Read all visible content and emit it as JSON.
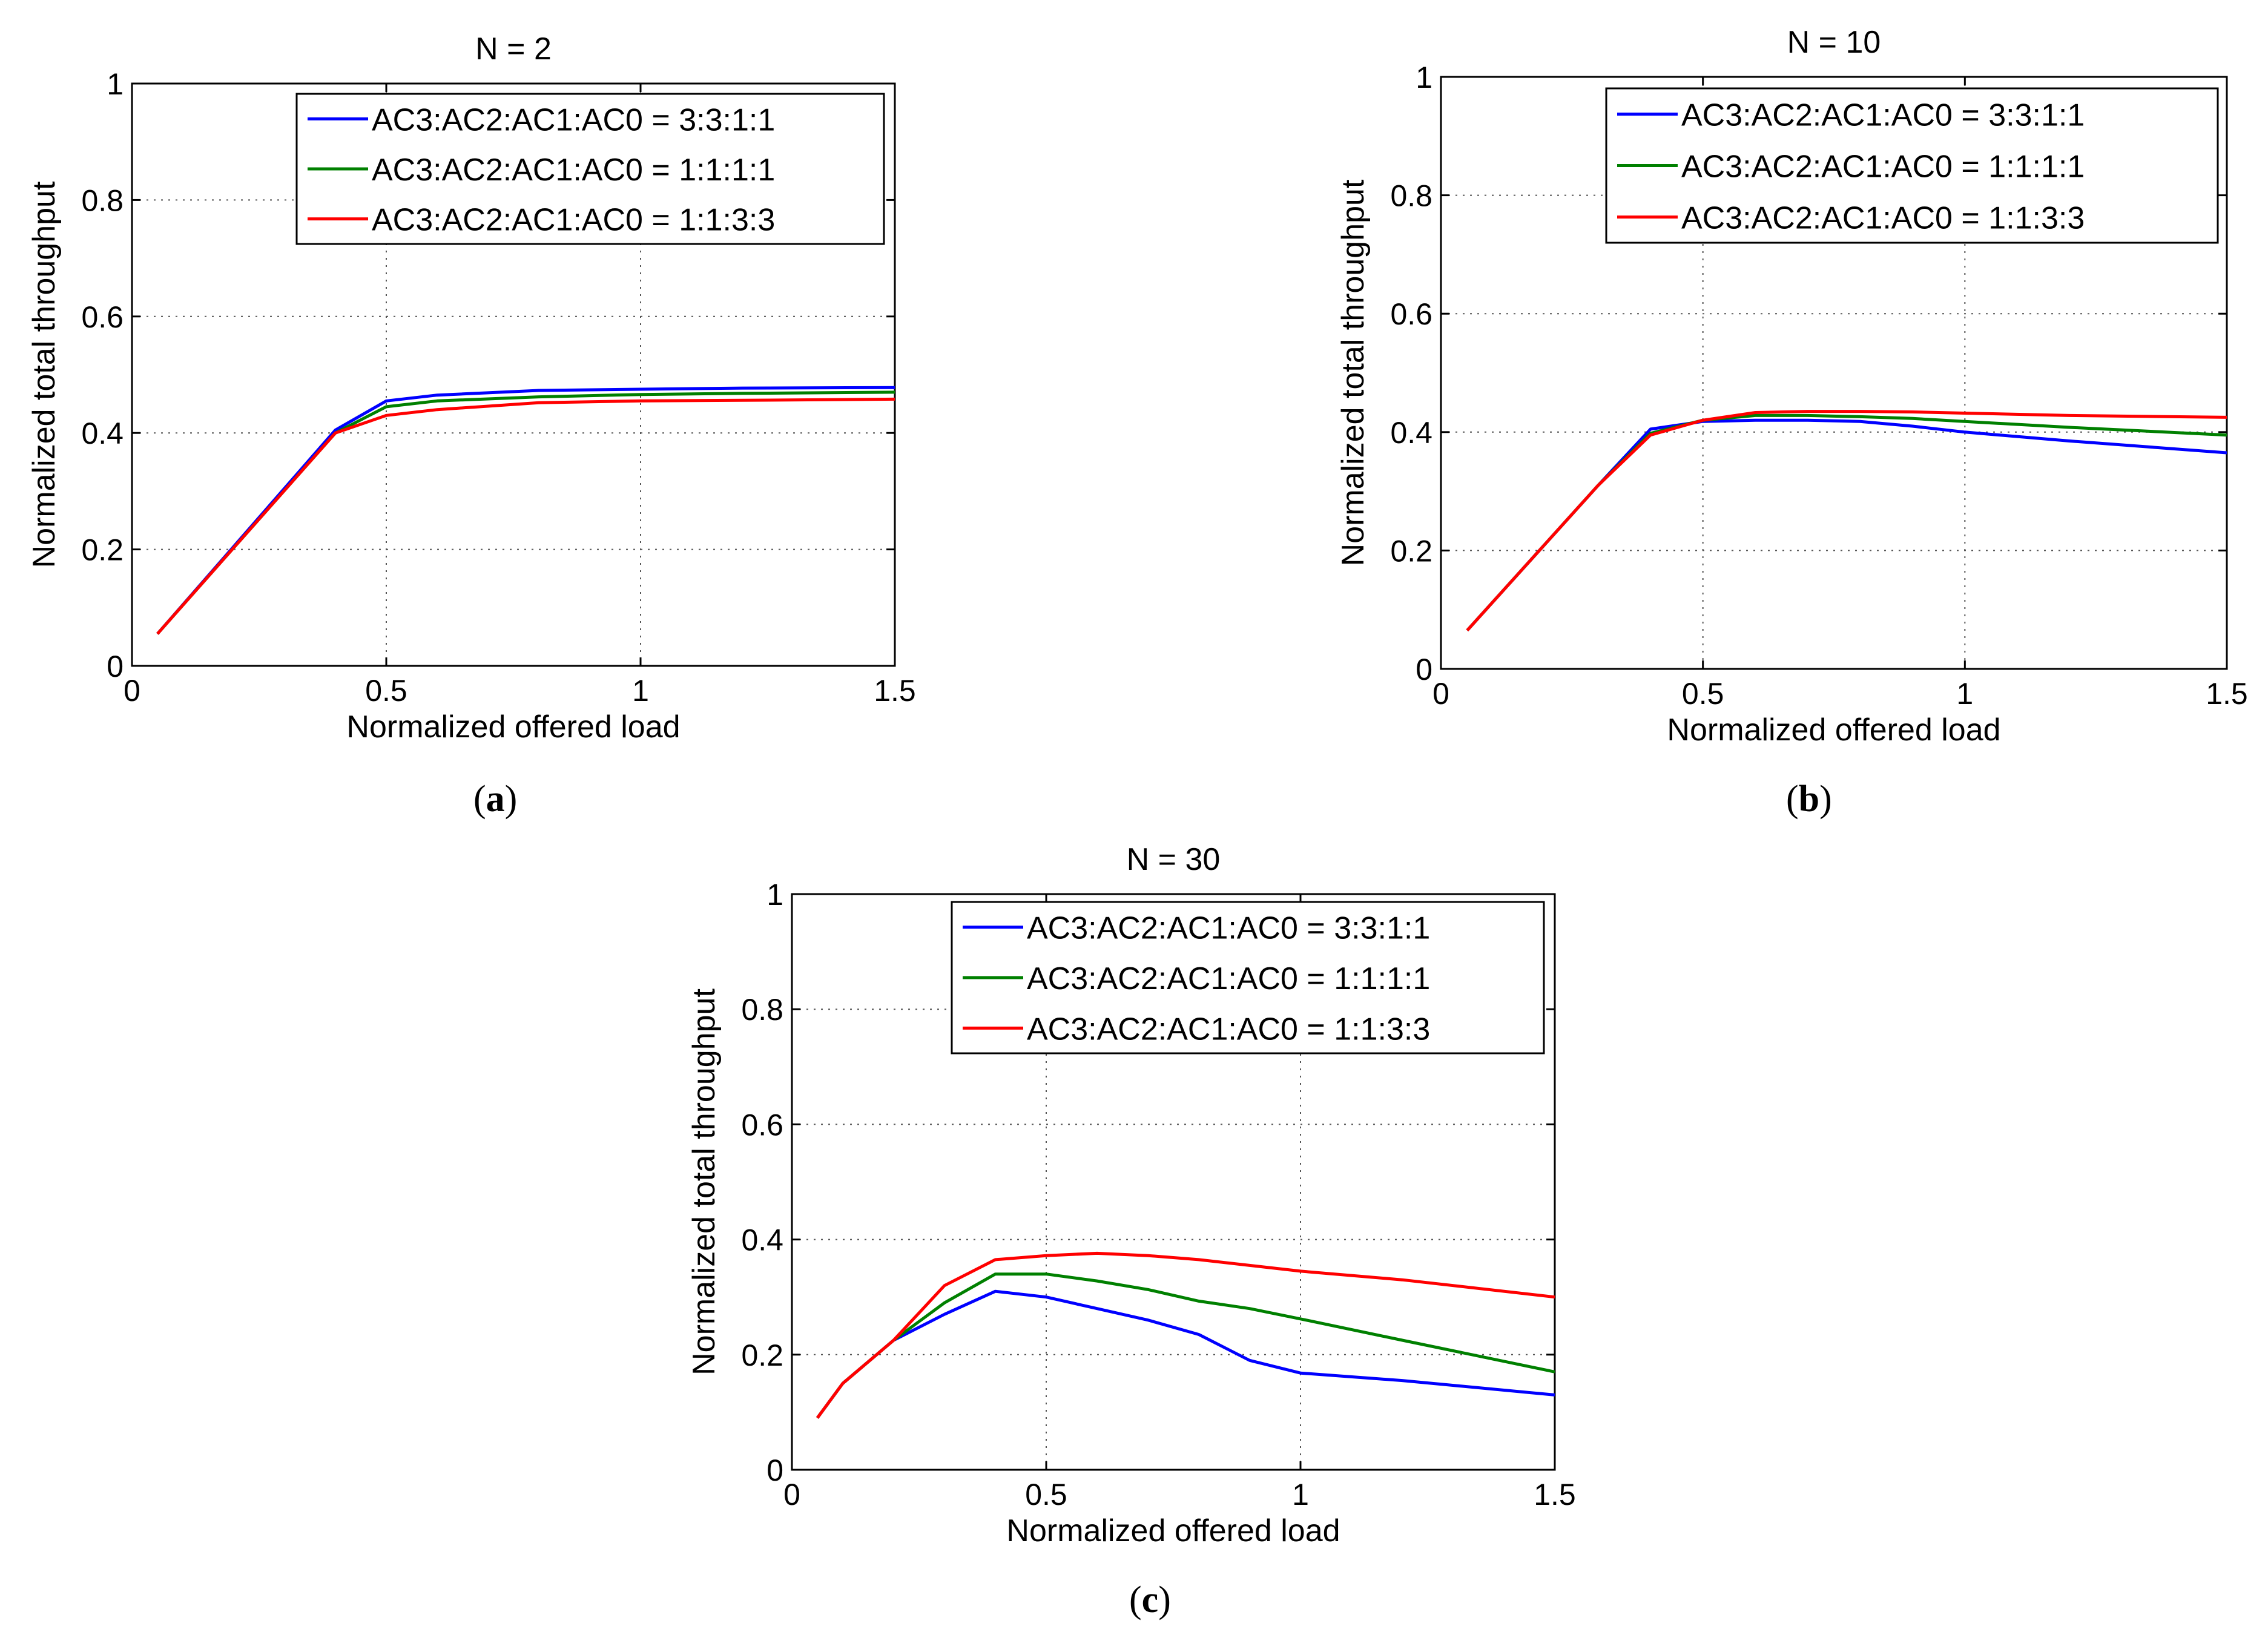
{
  "chart_data": [
    {
      "type": "line",
      "panel_label": "a",
      "title": "N = 2",
      "xlabel": "Normalized offered load",
      "ylabel": "Normalized total throughput",
      "xlim": [
        0,
        1.5
      ],
      "ylim": [
        0,
        1
      ],
      "xticks": [
        0,
        0.5,
        1,
        1.5
      ],
      "xtick_labels": [
        "0",
        "0.5",
        "1",
        "1.5"
      ],
      "yticks": [
        0,
        0.2,
        0.4,
        0.6,
        0.8,
        1
      ],
      "ytick_labels": [
        "0",
        "0.2",
        "0.4",
        "0.6",
        "0.8",
        "1"
      ],
      "grid": true,
      "legend_position": "top-right",
      "series": [
        {
          "name": "AC3:AC2:AC1:AC0 = 3:3:1:1",
          "color": "#0000ff",
          "x": [
            0.05,
            0.4,
            0.5,
            0.6,
            0.8,
            1.0,
            1.2,
            1.5
          ],
          "y": [
            0.055,
            0.405,
            0.455,
            0.465,
            0.473,
            0.475,
            0.477,
            0.478
          ]
        },
        {
          "name": "AC3:AC2:AC1:AC0 = 1:1:1:1",
          "color": "#008000",
          "x": [
            0.05,
            0.4,
            0.5,
            0.6,
            0.8,
            1.0,
            1.2,
            1.5
          ],
          "y": [
            0.055,
            0.4,
            0.445,
            0.455,
            0.462,
            0.466,
            0.468,
            0.47
          ]
        },
        {
          "name": "AC3:AC2:AC1:AC0 = 1:1:3:3",
          "color": "#ff0000",
          "x": [
            0.05,
            0.4,
            0.5,
            0.6,
            0.8,
            1.0,
            1.2,
            1.5
          ],
          "y": [
            0.055,
            0.4,
            0.43,
            0.44,
            0.452,
            0.455,
            0.456,
            0.458
          ]
        }
      ]
    },
    {
      "type": "line",
      "panel_label": "b",
      "title": "N = 10",
      "xlabel": "Normalized offered load",
      "ylabel": "Normalized total throughput",
      "xlim": [
        0,
        1.5
      ],
      "ylim": [
        0,
        1
      ],
      "xticks": [
        0,
        0.5,
        1,
        1.5
      ],
      "xtick_labels": [
        "0",
        "0.5",
        "1",
        "1.5"
      ],
      "yticks": [
        0,
        0.2,
        0.4,
        0.6,
        0.8,
        1
      ],
      "ytick_labels": [
        "0",
        "0.2",
        "0.4",
        "0.6",
        "0.8",
        "1"
      ],
      "grid": true,
      "legend_position": "top-right",
      "series": [
        {
          "name": "AC3:AC2:AC1:AC0 = 3:3:1:1",
          "color": "#0000ff",
          "x": [
            0.05,
            0.3,
            0.4,
            0.5,
            0.6,
            0.7,
            0.8,
            0.9,
            1.0,
            1.2,
            1.5
          ],
          "y": [
            0.065,
            0.31,
            0.405,
            0.418,
            0.42,
            0.42,
            0.418,
            0.41,
            0.4,
            0.385,
            0.365
          ]
        },
        {
          "name": "AC3:AC2:AC1:AC0 = 1:1:1:1",
          "color": "#008000",
          "x": [
            0.05,
            0.3,
            0.4,
            0.5,
            0.6,
            0.7,
            0.8,
            0.9,
            1.0,
            1.2,
            1.5
          ],
          "y": [
            0.065,
            0.31,
            0.398,
            0.42,
            0.428,
            0.428,
            0.426,
            0.423,
            0.418,
            0.408,
            0.395
          ]
        },
        {
          "name": "AC3:AC2:AC1:AC0 = 1:1:3:3",
          "color": "#ff0000",
          "x": [
            0.05,
            0.3,
            0.4,
            0.5,
            0.6,
            0.7,
            0.8,
            0.9,
            1.0,
            1.2,
            1.5
          ],
          "y": [
            0.065,
            0.31,
            0.395,
            0.42,
            0.433,
            0.435,
            0.435,
            0.434,
            0.432,
            0.428,
            0.425
          ]
        }
      ]
    },
    {
      "type": "line",
      "panel_label": "c",
      "title": "N = 30",
      "xlabel": "Normalized offered load",
      "ylabel": "Normalized total throughput",
      "xlim": [
        0,
        1.5
      ],
      "ylim": [
        0,
        1
      ],
      "xticks": [
        0,
        0.5,
        1,
        1.5
      ],
      "xtick_labels": [
        "0",
        "0.5",
        "1",
        "1.5"
      ],
      "yticks": [
        0,
        0.2,
        0.4,
        0.6,
        0.8,
        1
      ],
      "ytick_labels": [
        "0",
        "0.2",
        "0.4",
        "0.6",
        "0.8",
        "1"
      ],
      "grid": true,
      "legend_position": "top-right",
      "series": [
        {
          "name": "AC3:AC2:AC1:AC0 = 3:3:1:1",
          "color": "#0000ff",
          "x": [
            0.05,
            0.1,
            0.2,
            0.3,
            0.4,
            0.5,
            0.6,
            0.7,
            0.8,
            0.9,
            1.0,
            1.2,
            1.5
          ],
          "y": [
            0.09,
            0.15,
            0.225,
            0.27,
            0.31,
            0.3,
            0.28,
            0.26,
            0.235,
            0.19,
            0.168,
            0.155,
            0.13
          ]
        },
        {
          "name": "AC3:AC2:AC1:AC0 = 1:1:1:1",
          "color": "#008000",
          "x": [
            0.05,
            0.1,
            0.2,
            0.3,
            0.4,
            0.5,
            0.6,
            0.7,
            0.8,
            0.9,
            1.0,
            1.2,
            1.5
          ],
          "y": [
            0.09,
            0.15,
            0.225,
            0.29,
            0.34,
            0.34,
            0.328,
            0.313,
            0.293,
            0.28,
            0.262,
            0.225,
            0.17
          ]
        },
        {
          "name": "AC3:AC2:AC1:AC0 = 1:1:3:3",
          "color": "#ff0000",
          "x": [
            0.05,
            0.1,
            0.2,
            0.3,
            0.4,
            0.5,
            0.6,
            0.7,
            0.8,
            0.9,
            1.0,
            1.2,
            1.5
          ],
          "y": [
            0.09,
            0.15,
            0.225,
            0.32,
            0.365,
            0.372,
            0.376,
            0.372,
            0.365,
            0.355,
            0.345,
            0.33,
            0.3
          ]
        }
      ]
    }
  ]
}
